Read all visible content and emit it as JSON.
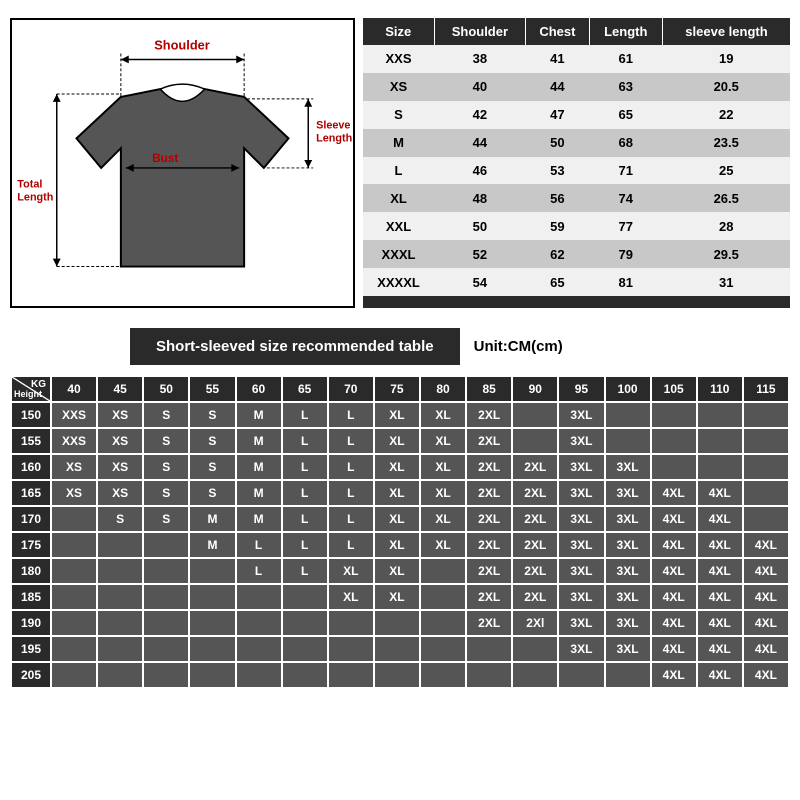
{
  "diagram": {
    "labels": {
      "shoulder": "Shoulder",
      "bust": "Bust",
      "sleeve": "Sleeve Length",
      "total": "Total Length"
    },
    "label_color": "#b00000",
    "shirt_fill": "#555555",
    "shirt_stroke": "#000000",
    "arrow_color": "#000000"
  },
  "sizeTable": {
    "headers": [
      "Size",
      "Shoulder",
      "Chest",
      "Length",
      "sleeve length"
    ],
    "header_bg": "#2a2a2a",
    "row_bg_odd": "#f0f0f0",
    "row_bg_even": "#c8c8c8",
    "rows": [
      [
        "XXS",
        "38",
        "41",
        "61",
        "19"
      ],
      [
        "XS",
        "40",
        "44",
        "63",
        "20.5"
      ],
      [
        "S",
        "42",
        "47",
        "65",
        "22"
      ],
      [
        "M",
        "44",
        "50",
        "68",
        "23.5"
      ],
      [
        "L",
        "46",
        "53",
        "71",
        "25"
      ],
      [
        "XL",
        "48",
        "56",
        "74",
        "26.5"
      ],
      [
        "XXL",
        "50",
        "59",
        "77",
        "28"
      ],
      [
        "XXXL",
        "52",
        "62",
        "79",
        "29.5"
      ],
      [
        "XXXXL",
        "54",
        "65",
        "81",
        "31"
      ]
    ]
  },
  "banner": {
    "text": "Short-sleeved size recommended table",
    "unit": "Unit:CM(cm)"
  },
  "recTable": {
    "corner": {
      "kg": "KG",
      "height": "Height"
    },
    "weights": [
      "40",
      "45",
      "50",
      "55",
      "60",
      "65",
      "70",
      "75",
      "80",
      "85",
      "90",
      "95",
      "100",
      "105",
      "110",
      "115"
    ],
    "heights": [
      "150",
      "155",
      "160",
      "165",
      "170",
      "175",
      "180",
      "185",
      "190",
      "195",
      "205"
    ],
    "cells": [
      [
        "XXS",
        "XS",
        "S",
        "S",
        "M",
        "L",
        "L",
        "XL",
        "XL",
        "2XL",
        "",
        "3XL",
        "",
        "",
        "",
        ""
      ],
      [
        "XXS",
        "XS",
        "S",
        "S",
        "M",
        "L",
        "L",
        "XL",
        "XL",
        "2XL",
        "",
        "3XL",
        "",
        "",
        "",
        ""
      ],
      [
        "XS",
        "XS",
        "S",
        "S",
        "M",
        "L",
        "L",
        "XL",
        "XL",
        "2XL",
        "2XL",
        "3XL",
        "3XL",
        "",
        "",
        ""
      ],
      [
        "XS",
        "XS",
        "S",
        "S",
        "M",
        "L",
        "L",
        "XL",
        "XL",
        "2XL",
        "2XL",
        "3XL",
        "3XL",
        "4XL",
        "4XL",
        ""
      ],
      [
        "",
        "S",
        "S",
        "M",
        "M",
        "L",
        "L",
        "XL",
        "XL",
        "2XL",
        "2XL",
        "3XL",
        "3XL",
        "4XL",
        "4XL",
        ""
      ],
      [
        "",
        "",
        "",
        "M",
        "L",
        "L",
        "L",
        "XL",
        "XL",
        "2XL",
        "2XL",
        "3XL",
        "3XL",
        "4XL",
        "4XL",
        "4XL"
      ],
      [
        "",
        "",
        "",
        "",
        "L",
        "L",
        "XL",
        "XL",
        "",
        "2XL",
        "2XL",
        "3XL",
        "3XL",
        "4XL",
        "4XL",
        "4XL"
      ],
      [
        "",
        "",
        "",
        "",
        "",
        "",
        "XL",
        "XL",
        "",
        "2XL",
        "2XL",
        "3XL",
        "3XL",
        "4XL",
        "4XL",
        "4XL"
      ],
      [
        "",
        "",
        "",
        "",
        "",
        "",
        "",
        "",
        "",
        "2XL",
        "2Xl",
        "3XL",
        "3XL",
        "4XL",
        "4XL",
        "4XL"
      ],
      [
        "",
        "",
        "",
        "",
        "",
        "",
        "",
        "",
        "",
        "",
        "",
        "3XL",
        "3XL",
        "4XL",
        "4XL",
        "4XL"
      ],
      [
        "",
        "",
        "",
        "",
        "",
        "",
        "",
        "",
        "",
        "",
        "",
        "",
        "",
        "4XL",
        "4XL",
        "4XL"
      ]
    ],
    "header_bg": "#2a2a2a",
    "cell_bg": "#555555",
    "text_color": "#ffffff"
  }
}
